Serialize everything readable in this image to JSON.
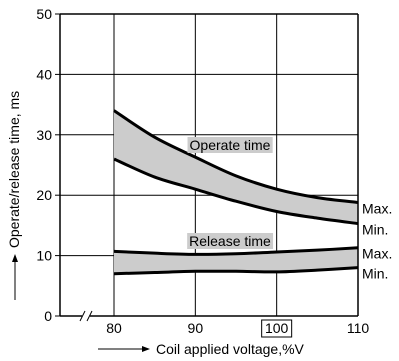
{
  "chart_data": {
    "type": "line",
    "xlabel": "Coil applied voltage,%V",
    "ylabel": "Operate/release time, ms",
    "x_ticks": [
      "80",
      "90",
      "100",
      "110"
    ],
    "y_ticks": [
      "0",
      "10",
      "20",
      "30",
      "40",
      "50"
    ],
    "boxed_x_tick": "100",
    "xlim": [
      80,
      110
    ],
    "ylim": [
      0,
      50
    ],
    "x_axis_break": true,
    "grid": true,
    "bands": [
      {
        "label": "Operate time",
        "fill": "#cccccc",
        "max": {
          "name": "Max.",
          "x": [
            80,
            85,
            90,
            95,
            100,
            105,
            110
          ],
          "y": [
            34,
            29.6,
            26.3,
            23.2,
            21,
            19.6,
            18.8
          ]
        },
        "min": {
          "name": "Min.",
          "x": [
            80,
            85,
            90,
            95,
            100,
            105,
            110
          ],
          "y": [
            26,
            23,
            21,
            19,
            17.3,
            16.2,
            15.3
          ]
        }
      },
      {
        "label": "Release time",
        "fill": "#cccccc",
        "max": {
          "name": "Max.",
          "x": [
            80,
            85,
            90,
            95,
            100,
            105,
            110
          ],
          "y": [
            10.7,
            10.4,
            10.2,
            10.3,
            10.6,
            10.9,
            11.3
          ]
        },
        "min": {
          "name": "Min.",
          "x": [
            80,
            85,
            90,
            95,
            100,
            105,
            110
          ],
          "y": [
            7,
            7.2,
            7.4,
            7.4,
            7.3,
            7.6,
            8
          ]
        }
      }
    ]
  }
}
